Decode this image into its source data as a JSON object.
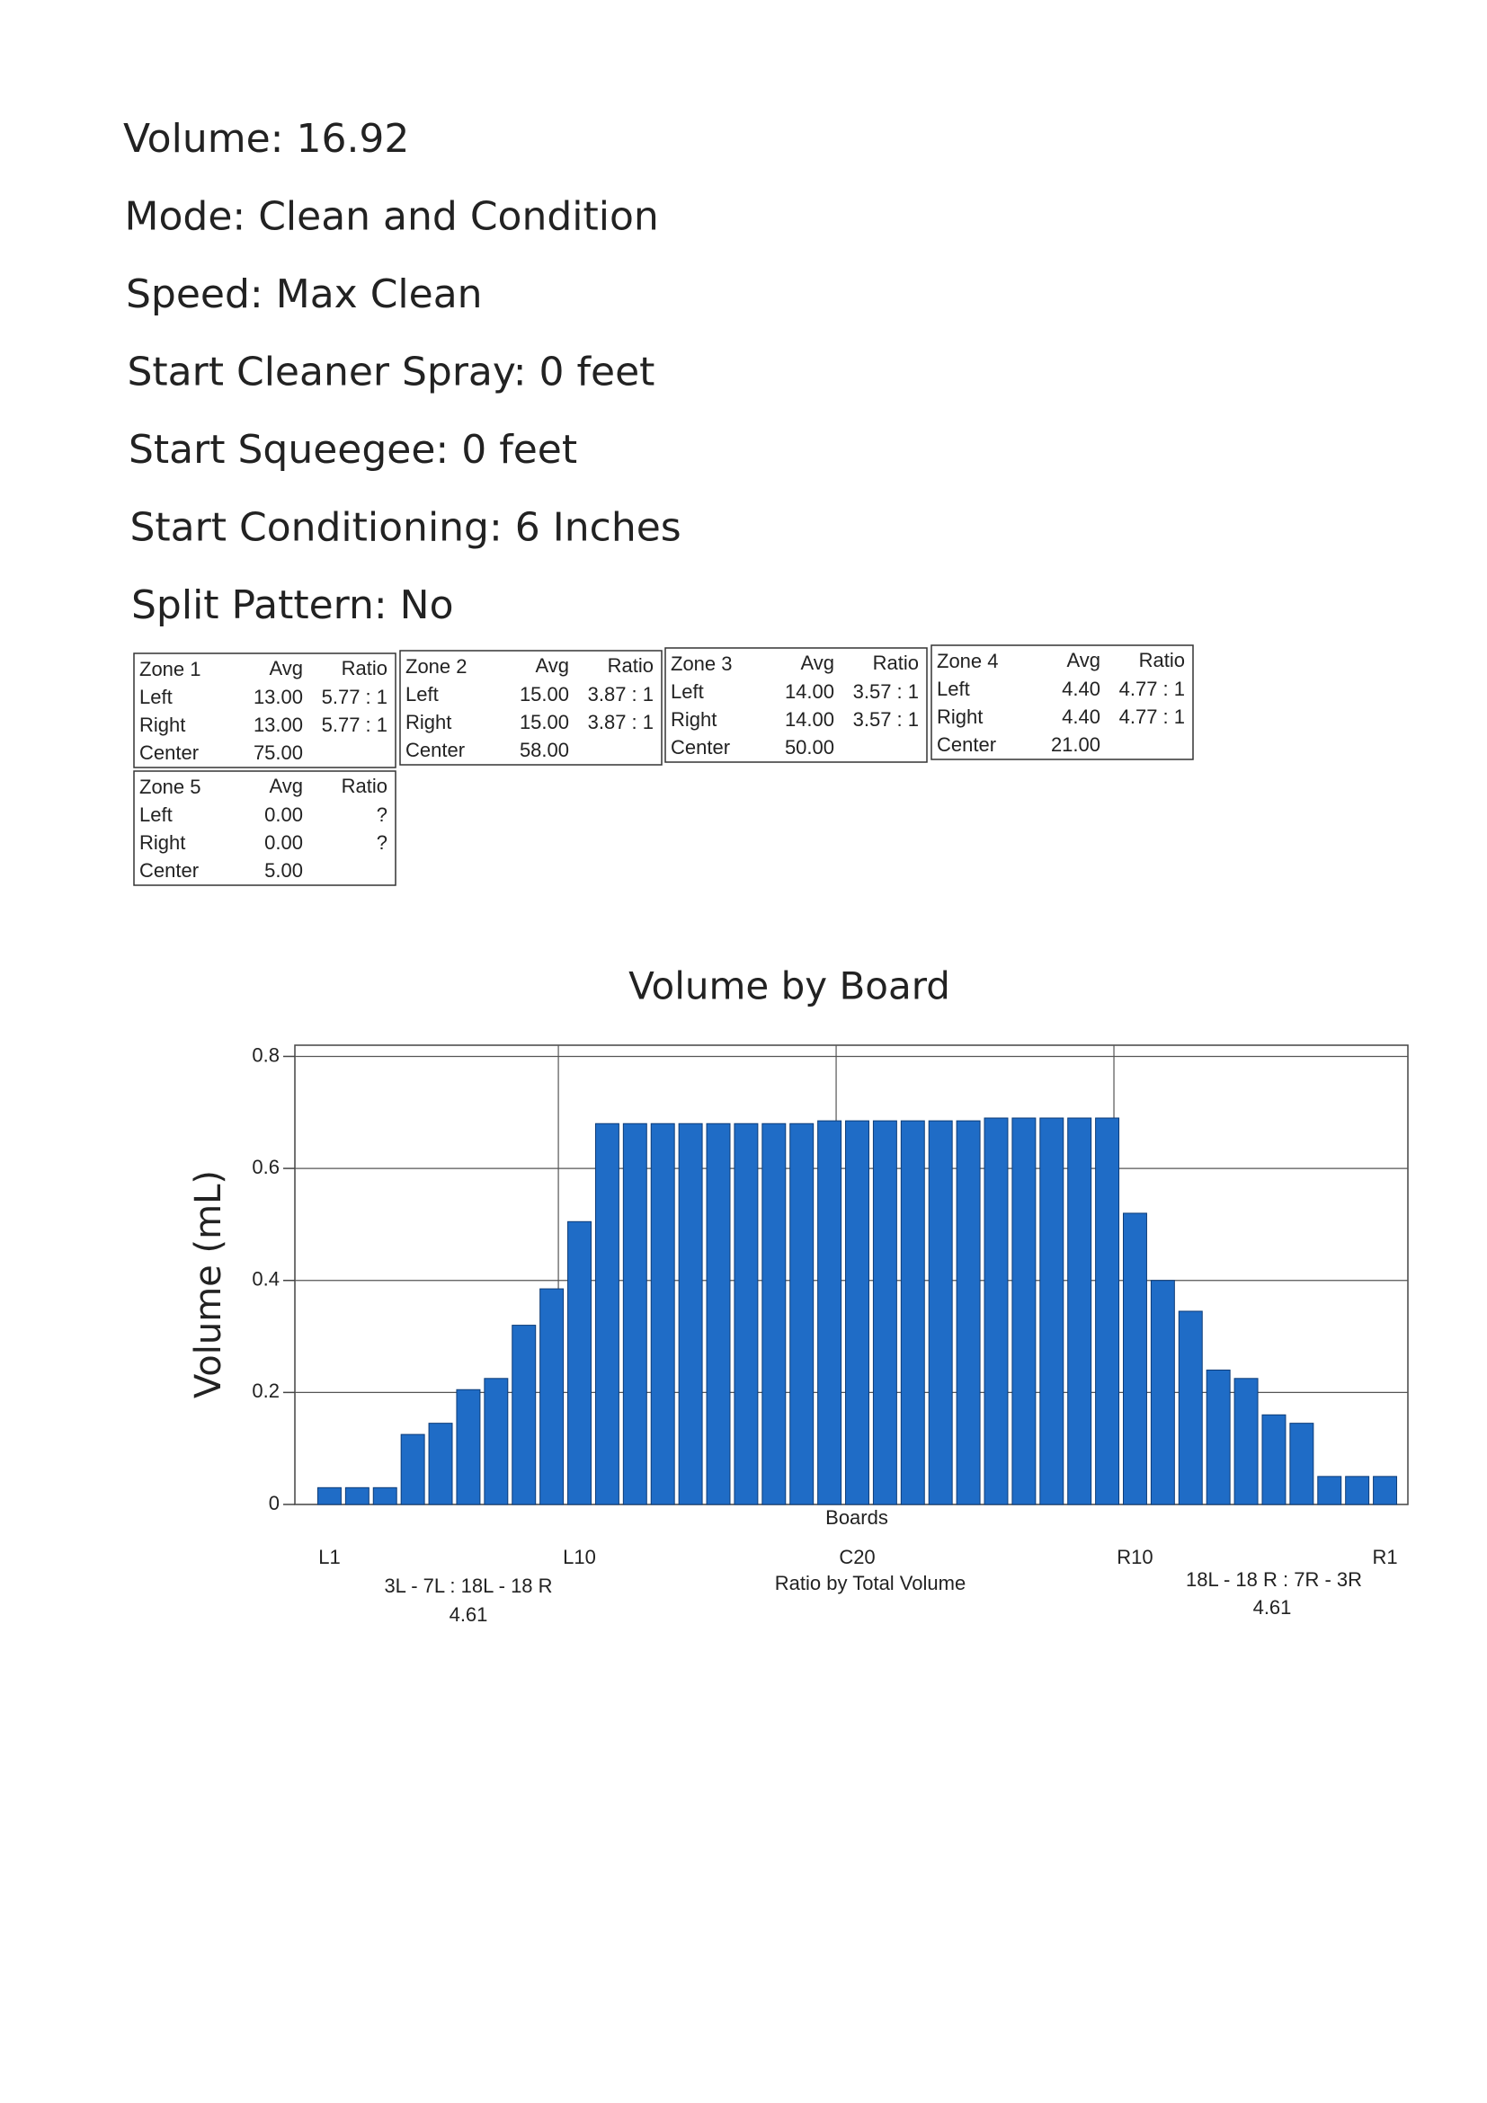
{
  "settings": [
    "Volume: 16.92",
    "Mode: Clean and Condition",
    "Speed: Max Clean",
    "Start Cleaner Spray: 0 feet",
    "Start Squeegee: 0 feet",
    "Start Conditioning: 6 Inches",
    "Split Pattern: No"
  ],
  "zones": [
    {
      "title": "Zone 1",
      "headers": [
        "Avg",
        "Ratio"
      ],
      "rows": [
        [
          "Left",
          "13.00",
          "5.77 : 1"
        ],
        [
          "Right",
          "13.00",
          "5.77 : 1"
        ],
        [
          "Center",
          "75.00"
        ]
      ]
    },
    {
      "title": "Zone 2",
      "headers": [
        "Avg",
        "Ratio"
      ],
      "rows": [
        [
          "Left",
          "15.00",
          "3.87 : 1"
        ],
        [
          "Right",
          "15.00",
          "3.87 : 1"
        ],
        [
          "Center",
          "58.00"
        ]
      ]
    },
    {
      "title": "Zone 3",
      "headers": [
        "Avg",
        "Ratio"
      ],
      "rows": [
        [
          "Left",
          "14.00",
          "3.57 : 1"
        ],
        [
          "Right",
          "14.00",
          "3.57 : 1"
        ],
        [
          "Center",
          "50.00"
        ]
      ]
    },
    {
      "title": "Zone 4",
      "headers": [
        "Avg",
        "Ratio"
      ],
      "rows": [
        [
          "Left",
          "4.40",
          "4.77 : 1"
        ],
        [
          "Right",
          "4.40",
          "4.77 : 1"
        ],
        [
          "Center",
          "21.00"
        ]
      ]
    },
    {
      "title": "Zone 5",
      "headers": [
        "Avg",
        "Ratio"
      ],
      "rows": [
        [
          "Left",
          "0.00",
          "?"
        ],
        [
          "Right",
          "0.00",
          "?"
        ],
        [
          "Center",
          "5.00"
        ]
      ]
    }
  ],
  "chart_data": {
    "type": "bar",
    "title": "Volume by Board",
    "x_label": "Boards",
    "y_label": "Volume (mL)",
    "categories": [
      "L1",
      null,
      null,
      null,
      null,
      null,
      null,
      null,
      null,
      "L10",
      null,
      null,
      null,
      null,
      null,
      null,
      null,
      null,
      null,
      "C20",
      null,
      null,
      null,
      null,
      null,
      null,
      null,
      null,
      null,
      "R10",
      null,
      null,
      null,
      null,
      null,
      null,
      null,
      null,
      "R1"
    ],
    "values": [
      0.03,
      0.03,
      0.03,
      0.125,
      0.145,
      0.205,
      0.225,
      0.32,
      0.385,
      0.505,
      0.68,
      0.68,
      0.68,
      0.68,
      0.68,
      0.68,
      0.68,
      0.68,
      0.685,
      0.685,
      0.685,
      0.685,
      0.685,
      0.685,
      0.69,
      0.69,
      0.69,
      0.69,
      0.69,
      0.52,
      0.4,
      0.345,
      0.24,
      0.225,
      0.16,
      0.145,
      0.05,
      0.05,
      0.05
    ],
    "color": "#1f6cc6",
    "ylim": [
      0,
      0.82
    ],
    "yticks": [
      0,
      0.2,
      0.4,
      0.6,
      0.8
    ],
    "grid": true,
    "annotations": [
      "3L - 7L : 18L - 18 R",
      "4.61",
      "Ratio by Total Volume",
      "18L - 18 R : 7R - 3R",
      "4.61"
    ]
  }
}
